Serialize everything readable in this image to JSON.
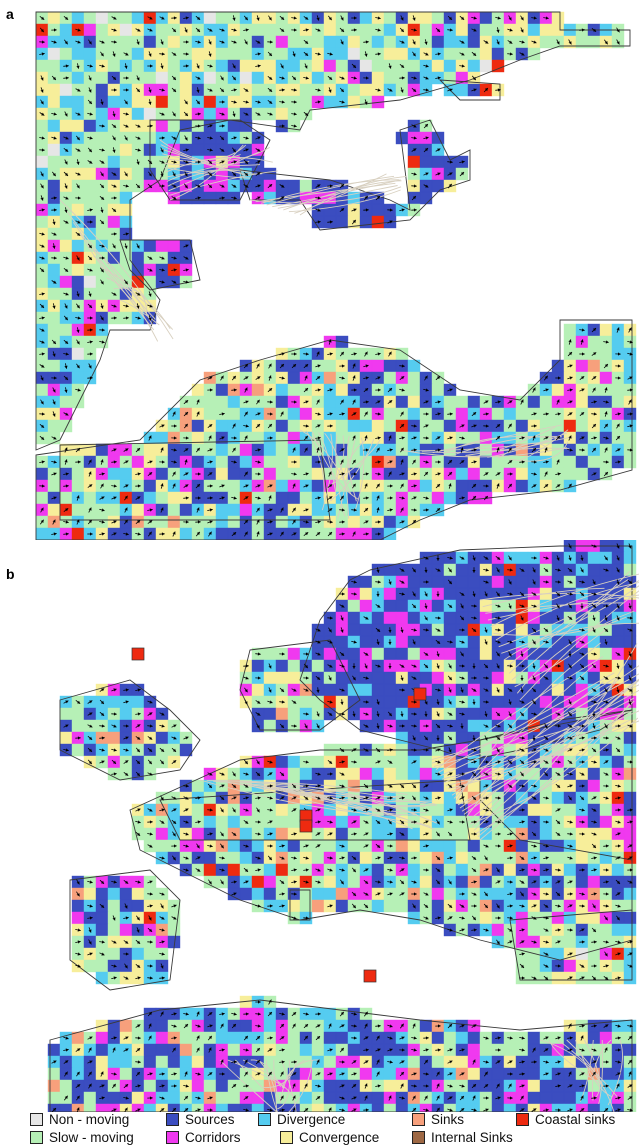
{
  "panels": [
    {
      "label": "a"
    },
    {
      "label": "b"
    }
  ],
  "legend": [
    {
      "key": "non-moving",
      "label": "Non - moving",
      "color": "#e6e6e6"
    },
    {
      "key": "sources",
      "label": "Sources",
      "color": "#3b4dc0"
    },
    {
      "key": "divergence",
      "label": "Divergence",
      "color": "#55ccf0"
    },
    {
      "key": "sinks",
      "label": "Sinks",
      "color": "#f7a07c"
    },
    {
      "key": "coastal-sinks",
      "label": "Coastal sinks",
      "color": "#ee2a10"
    },
    {
      "key": "slow-moving",
      "label": "Slow - moving",
      "color": "#b6f0b6"
    },
    {
      "key": "corridors",
      "label": "Corridors",
      "color": "#f039ef"
    },
    {
      "key": "convergence",
      "label": "Convergence",
      "color": "#f7ee9a"
    },
    {
      "key": "internal-sinks",
      "label": "Internal Sinks",
      "color": "#9e6844"
    }
  ]
}
